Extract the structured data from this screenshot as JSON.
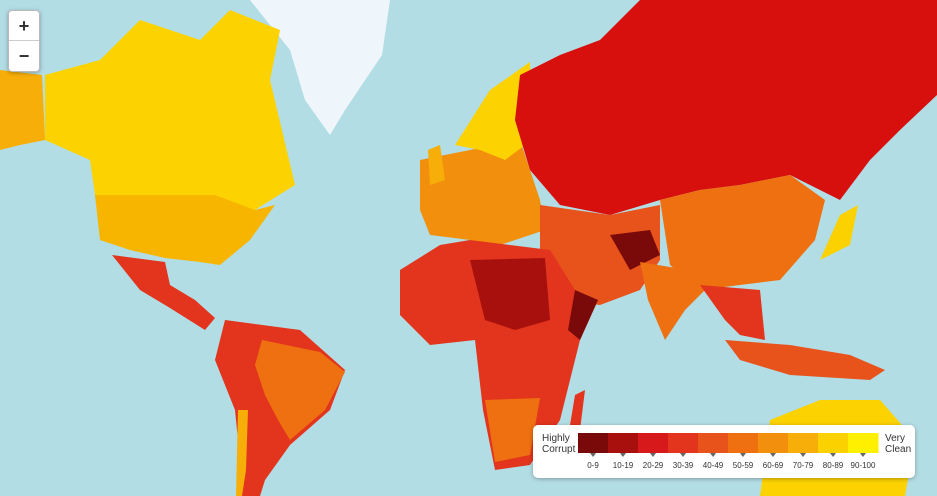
{
  "zoom": {
    "in": "+",
    "out": "−"
  },
  "legend": {
    "low": [
      "Highly",
      "Corrupt"
    ],
    "high": [
      "Very",
      "Clean"
    ],
    "bins": [
      {
        "label": "0-9",
        "color": "#7a0a0a"
      },
      {
        "label": "10-19",
        "color": "#a8100e"
      },
      {
        "label": "20-29",
        "color": "#d7191c"
      },
      {
        "label": "30-39",
        "color": "#e3341d"
      },
      {
        "label": "40-49",
        "color": "#e8521b"
      },
      {
        "label": "50-59",
        "color": "#ee7010"
      },
      {
        "label": "60-69",
        "color": "#f28f0c"
      },
      {
        "label": "70-79",
        "color": "#f7ae08"
      },
      {
        "label": "80-89",
        "color": "#fbd100"
      },
      {
        "label": "90-100",
        "color": "#fff000"
      }
    ]
  }
}
